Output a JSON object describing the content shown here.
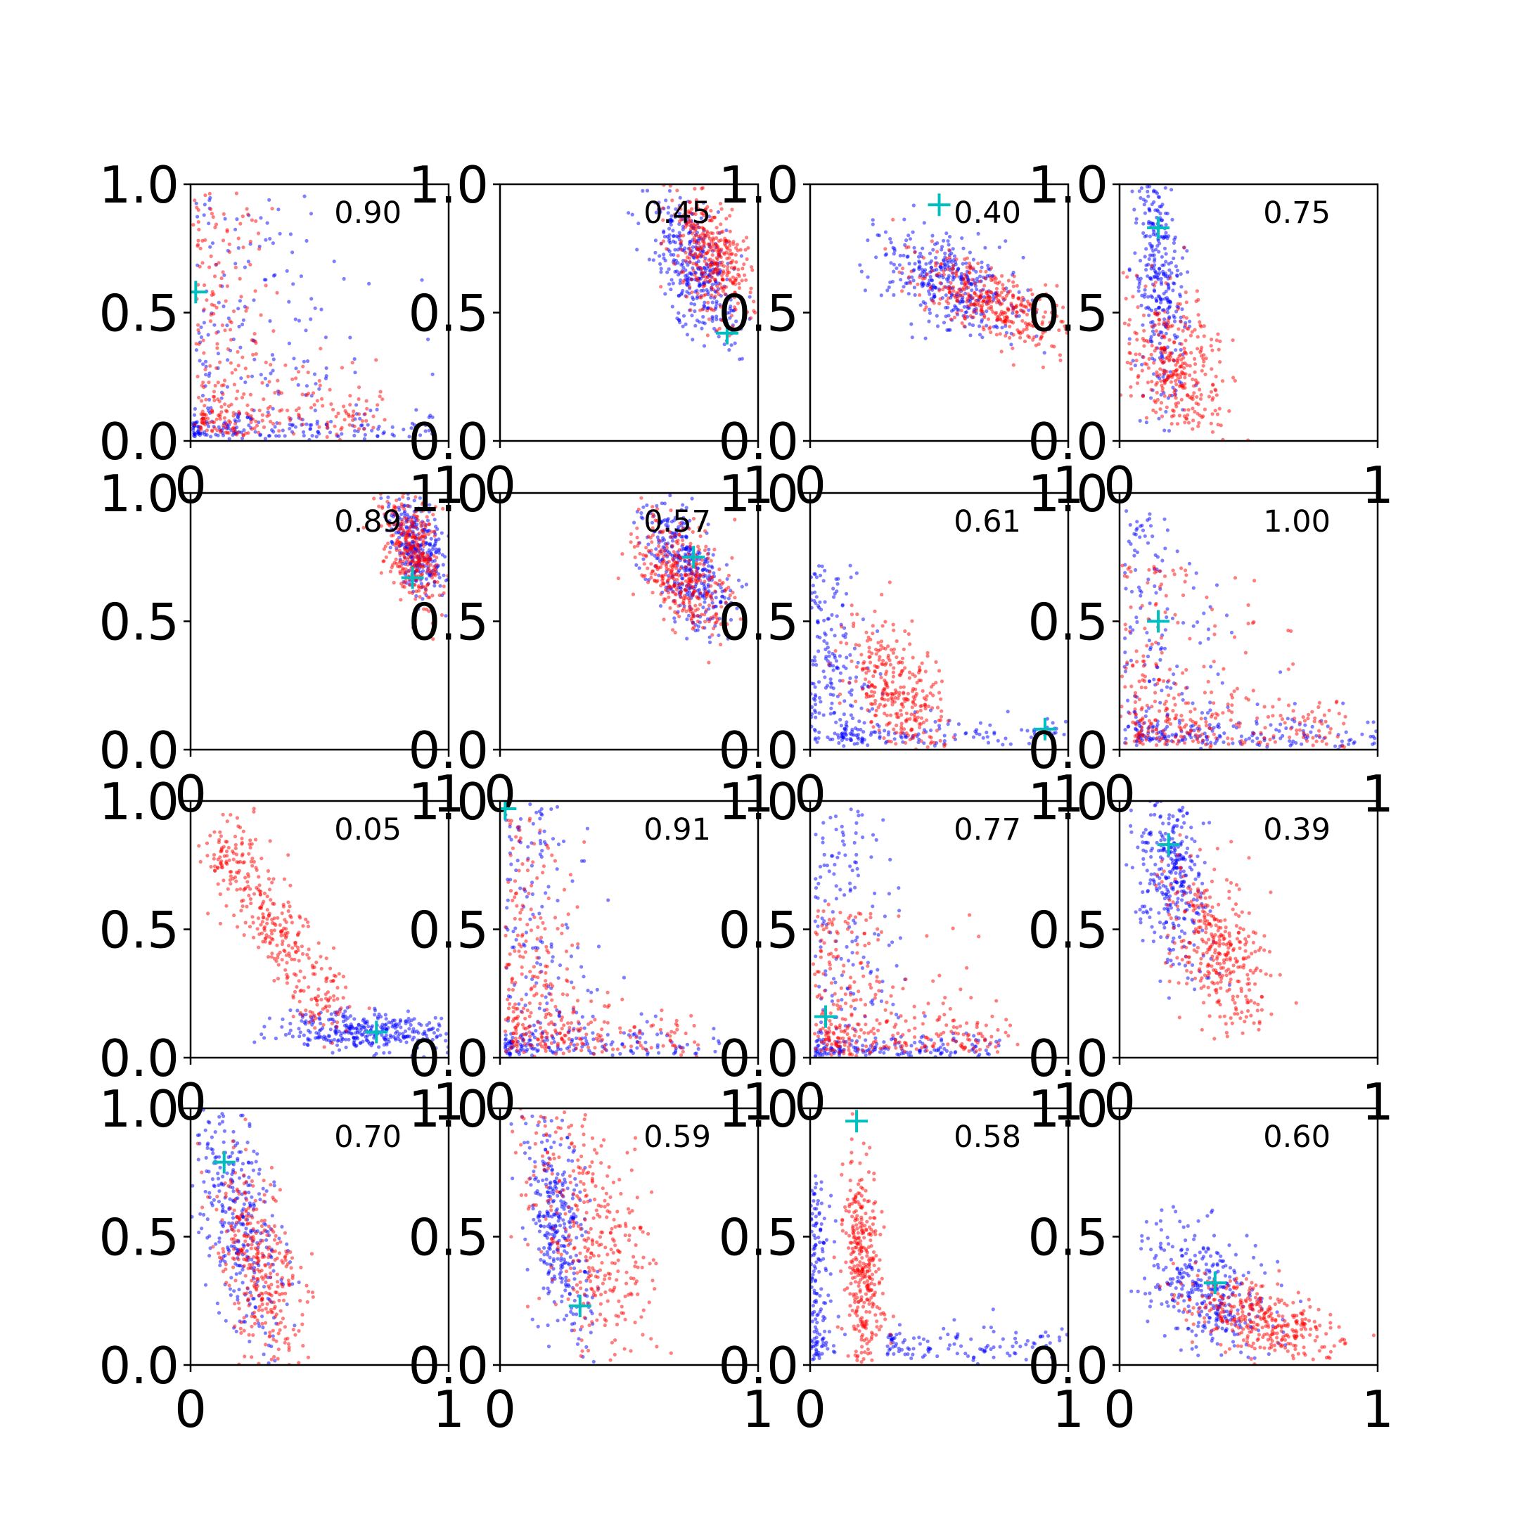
{
  "chart_data": {
    "type": "scatter",
    "layout": {
      "rows": 4,
      "cols": 4
    },
    "xlim": [
      0,
      1
    ],
    "ylim": [
      0,
      1
    ],
    "x_tick_labels": [
      "0",
      "1"
    ],
    "y_tick_labels": [
      "0.0",
      "0.5",
      "1.0"
    ],
    "colors": {
      "blue": "#0000ff",
      "red": "#ff0000",
      "marker": "#00bfbf",
      "axes": "#000000"
    },
    "panels": [
      {
        "annotation": "0.90",
        "marker": [
          0.02,
          0.58
        ],
        "blue": {
          "shape": "L",
          "tx": [
            0.01,
            0.4
          ],
          "ty": [
            0.02,
            0.05
          ],
          "vx": [
            0.97,
            0.35
          ],
          "vy": [
            0.95,
            0.03
          ],
          "n": 320
        },
        "red": {
          "shape": "L",
          "tx": [
            0.04,
            0.3
          ],
          "ty": [
            0.07,
            0.12
          ],
          "vx": [
            0.42,
            0.2
          ],
          "vy": [
            0.95,
            0.1
          ],
          "n": 320
        }
      },
      {
        "annotation": "0.45",
        "marker": [
          0.88,
          0.42
        ],
        "blue": {
          "shape": "blob",
          "cx": 0.75,
          "cy": 0.68,
          "sx": 0.08,
          "sy": 0.14,
          "rho": -0.6,
          "n": 360
        },
        "red": {
          "shape": "blob",
          "cx": 0.82,
          "cy": 0.72,
          "sx": 0.08,
          "sy": 0.12,
          "rho": -0.5,
          "n": 360
        }
      },
      {
        "annotation": "0.40",
        "marker": [
          0.5,
          0.92
        ],
        "blue": {
          "shape": "blob",
          "cx": 0.55,
          "cy": 0.62,
          "sx": 0.14,
          "sy": 0.1,
          "rho": -0.4,
          "n": 360
        },
        "red": {
          "shape": "blob",
          "cx": 0.68,
          "cy": 0.55,
          "sx": 0.16,
          "sy": 0.09,
          "rho": -0.7,
          "n": 360
        }
      },
      {
        "annotation": "0.75",
        "marker": [
          0.15,
          0.83
        ],
        "blue": {
          "shape": "blob",
          "cx": 0.15,
          "cy": 0.65,
          "sx": 0.05,
          "sy": 0.25,
          "rho": -0.3,
          "n": 340
        },
        "red": {
          "shape": "blob",
          "cx": 0.22,
          "cy": 0.3,
          "sx": 0.1,
          "sy": 0.15,
          "rho": -0.4,
          "n": 340
        }
      },
      {
        "annotation": "0.89",
        "marker": [
          0.86,
          0.67
        ],
        "blue": {
          "shape": "blob",
          "cx": 0.88,
          "cy": 0.8,
          "sx": 0.06,
          "sy": 0.1,
          "rho": -0.5,
          "n": 300
        },
        "red": {
          "shape": "blob",
          "cx": 0.86,
          "cy": 0.78,
          "sx": 0.06,
          "sy": 0.12,
          "rho": -0.5,
          "n": 320
        }
      },
      {
        "annotation": "0.57",
        "marker": [
          0.75,
          0.75
        ],
        "blue": {
          "shape": "blob",
          "cx": 0.72,
          "cy": 0.72,
          "sx": 0.09,
          "sy": 0.13,
          "rho": -0.6,
          "n": 340
        },
        "red": {
          "shape": "blob",
          "cx": 0.7,
          "cy": 0.68,
          "sx": 0.09,
          "sy": 0.11,
          "rho": -0.5,
          "n": 340
        }
      },
      {
        "annotation": "0.61",
        "marker": [
          0.91,
          0.08
        ],
        "blue": {
          "shape": "L",
          "tx": [
            0.12,
            0.5
          ],
          "ty": [
            0.06,
            0.04
          ],
          "vx": [
            0.12,
            0.1
          ],
          "vy": [
            0.7,
            0.3
          ],
          "n": 330
        },
        "red": {
          "shape": "blob",
          "cx": 0.33,
          "cy": 0.22,
          "sx": 0.1,
          "sy": 0.15,
          "rho": -0.5,
          "n": 340
        }
      },
      {
        "annotation": "1.00",
        "marker": [
          0.15,
          0.5
        ],
        "blue": {
          "shape": "L",
          "tx": [
            0.06,
            0.4
          ],
          "ty": [
            0.04,
            0.05
          ],
          "vx": [
            0.92,
            0.18
          ],
          "vy": [
            0.92,
            0.04
          ],
          "n": 320
        },
        "red": {
          "shape": "L",
          "tx": [
            0.06,
            0.34
          ],
          "ty": [
            0.04,
            0.1
          ],
          "vx": [
            0.1,
            0.3
          ],
          "vy": [
            0.7,
            0.2
          ],
          "n": 320
        }
      },
      {
        "annotation": "0.05",
        "marker": [
          0.72,
          0.1
        ],
        "blue": {
          "shape": "blob",
          "cx": 0.68,
          "cy": 0.1,
          "sx": 0.18,
          "sy": 0.04,
          "rho": -0.2,
          "n": 330
        },
        "red": {
          "shape": "diag",
          "x0": 0.1,
          "y0": 0.88,
          "x1": 0.55,
          "y1": 0.15,
          "w": 0.06,
          "n": 360
        }
      },
      {
        "annotation": "0.91",
        "marker": [
          0.02,
          0.97
        ],
        "blue": {
          "shape": "L",
          "tx": [
            0.02,
            0.35
          ],
          "ty": [
            0.02,
            0.05
          ],
          "vx": [
            0.97,
            0.2
          ],
          "vy": [
            0.97,
            0.05
          ],
          "n": 300
        },
        "red": {
          "shape": "L",
          "tx": [
            0.05,
            0.3
          ],
          "ty": [
            0.04,
            0.1
          ],
          "vx": [
            0.92,
            0.15
          ],
          "vy": [
            0.92,
            0.08
          ],
          "n": 330
        }
      },
      {
        "annotation": "0.77",
        "marker": [
          0.06,
          0.16
        ],
        "blue": {
          "shape": "L",
          "tx": [
            0.02,
            0.3
          ],
          "ty": [
            0.02,
            0.04
          ],
          "vx": [
            0.95,
            0.2
          ],
          "vy": [
            0.95,
            0.04
          ],
          "n": 300
        },
        "red": {
          "shape": "L",
          "tx": [
            0.06,
            0.3
          ],
          "ty": [
            0.04,
            0.1
          ],
          "vx": [
            0.58,
            0.22
          ],
          "vy": [
            0.58,
            0.08
          ],
          "n": 330
        }
      },
      {
        "annotation": "0.39",
        "marker": [
          0.19,
          0.83
        ],
        "blue": {
          "shape": "blob",
          "cx": 0.2,
          "cy": 0.72,
          "sx": 0.07,
          "sy": 0.18,
          "rho": -0.4,
          "n": 330
        },
        "red": {
          "shape": "blob",
          "cx": 0.38,
          "cy": 0.42,
          "sx": 0.1,
          "sy": 0.16,
          "rho": -0.5,
          "n": 350
        }
      },
      {
        "annotation": "0.70",
        "marker": [
          0.13,
          0.79
        ],
        "blue": {
          "shape": "blob",
          "cx": 0.18,
          "cy": 0.55,
          "sx": 0.09,
          "sy": 0.23,
          "rho": -0.5,
          "n": 330
        },
        "red": {
          "shape": "blob",
          "cx": 0.27,
          "cy": 0.38,
          "sx": 0.09,
          "sy": 0.2,
          "rho": -0.5,
          "n": 340
        }
      },
      {
        "annotation": "0.59",
        "marker": [
          0.31,
          0.23
        ],
        "blue": {
          "shape": "blob",
          "cx": 0.22,
          "cy": 0.55,
          "sx": 0.07,
          "sy": 0.22,
          "rho": -0.5,
          "n": 330
        },
        "red": {
          "shape": "blob",
          "cx": 0.35,
          "cy": 0.52,
          "sx": 0.12,
          "sy": 0.25,
          "rho": -0.5,
          "n": 350
        }
      },
      {
        "annotation": "0.58",
        "marker": [
          0.18,
          0.95
        ],
        "blue": {
          "shape": "L",
          "tx": [
            0.3,
            0.55
          ],
          "ty": [
            0.08,
            0.05
          ],
          "vx": [
            0.16,
            0.04
          ],
          "vy": [
            0.72,
            0.25
          ],
          "n": 320
        },
        "red": {
          "shape": "blob",
          "cx": 0.2,
          "cy": 0.38,
          "sx": 0.04,
          "sy": 0.2,
          "rho": -0.2,
          "n": 350
        }
      },
      {
        "annotation": "0.60",
        "marker": [
          0.37,
          0.32
        ],
        "blue": {
          "shape": "blob",
          "cx": 0.33,
          "cy": 0.3,
          "sx": 0.12,
          "sy": 0.12,
          "rho": -0.4,
          "n": 330
        },
        "red": {
          "shape": "blob",
          "cx": 0.55,
          "cy": 0.17,
          "sx": 0.15,
          "sy": 0.08,
          "rho": -0.5,
          "n": 350
        }
      }
    ]
  }
}
